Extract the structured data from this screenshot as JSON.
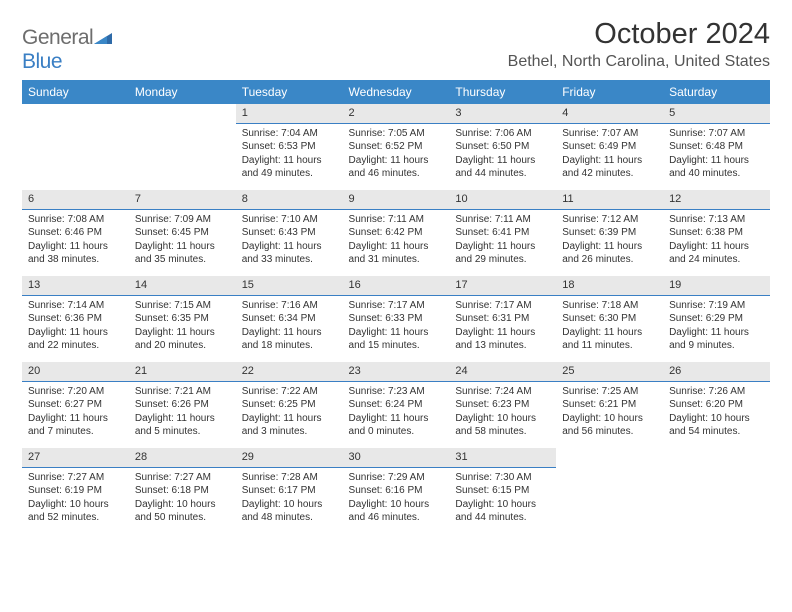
{
  "brand": {
    "part1": "General",
    "part2": "Blue"
  },
  "title": "October 2024",
  "location": "Bethel, North Carolina, United States",
  "colors": {
    "header_bg": "#3a87c7",
    "header_text": "#ffffff",
    "daynum_bg": "#e8e8e8",
    "daynum_border": "#3a7fc4",
    "body_text": "#333333",
    "logo_gray": "#6d6d6d",
    "logo_blue": "#3a7fc4"
  },
  "weekdays": [
    "Sunday",
    "Monday",
    "Tuesday",
    "Wednesday",
    "Thursday",
    "Friday",
    "Saturday"
  ],
  "weeks": [
    [
      {
        "blank": true
      },
      {
        "blank": true
      },
      {
        "day": "1",
        "sunrise": "Sunrise: 7:04 AM",
        "sunset": "Sunset: 6:53 PM",
        "day1": "Daylight: 11 hours",
        "day2": "and 49 minutes."
      },
      {
        "day": "2",
        "sunrise": "Sunrise: 7:05 AM",
        "sunset": "Sunset: 6:52 PM",
        "day1": "Daylight: 11 hours",
        "day2": "and 46 minutes."
      },
      {
        "day": "3",
        "sunrise": "Sunrise: 7:06 AM",
        "sunset": "Sunset: 6:50 PM",
        "day1": "Daylight: 11 hours",
        "day2": "and 44 minutes."
      },
      {
        "day": "4",
        "sunrise": "Sunrise: 7:07 AM",
        "sunset": "Sunset: 6:49 PM",
        "day1": "Daylight: 11 hours",
        "day2": "and 42 minutes."
      },
      {
        "day": "5",
        "sunrise": "Sunrise: 7:07 AM",
        "sunset": "Sunset: 6:48 PM",
        "day1": "Daylight: 11 hours",
        "day2": "and 40 minutes."
      }
    ],
    [
      {
        "day": "6",
        "sunrise": "Sunrise: 7:08 AM",
        "sunset": "Sunset: 6:46 PM",
        "day1": "Daylight: 11 hours",
        "day2": "and 38 minutes."
      },
      {
        "day": "7",
        "sunrise": "Sunrise: 7:09 AM",
        "sunset": "Sunset: 6:45 PM",
        "day1": "Daylight: 11 hours",
        "day2": "and 35 minutes."
      },
      {
        "day": "8",
        "sunrise": "Sunrise: 7:10 AM",
        "sunset": "Sunset: 6:43 PM",
        "day1": "Daylight: 11 hours",
        "day2": "and 33 minutes."
      },
      {
        "day": "9",
        "sunrise": "Sunrise: 7:11 AM",
        "sunset": "Sunset: 6:42 PM",
        "day1": "Daylight: 11 hours",
        "day2": "and 31 minutes."
      },
      {
        "day": "10",
        "sunrise": "Sunrise: 7:11 AM",
        "sunset": "Sunset: 6:41 PM",
        "day1": "Daylight: 11 hours",
        "day2": "and 29 minutes."
      },
      {
        "day": "11",
        "sunrise": "Sunrise: 7:12 AM",
        "sunset": "Sunset: 6:39 PM",
        "day1": "Daylight: 11 hours",
        "day2": "and 26 minutes."
      },
      {
        "day": "12",
        "sunrise": "Sunrise: 7:13 AM",
        "sunset": "Sunset: 6:38 PM",
        "day1": "Daylight: 11 hours",
        "day2": "and 24 minutes."
      }
    ],
    [
      {
        "day": "13",
        "sunrise": "Sunrise: 7:14 AM",
        "sunset": "Sunset: 6:36 PM",
        "day1": "Daylight: 11 hours",
        "day2": "and 22 minutes."
      },
      {
        "day": "14",
        "sunrise": "Sunrise: 7:15 AM",
        "sunset": "Sunset: 6:35 PM",
        "day1": "Daylight: 11 hours",
        "day2": "and 20 minutes."
      },
      {
        "day": "15",
        "sunrise": "Sunrise: 7:16 AM",
        "sunset": "Sunset: 6:34 PM",
        "day1": "Daylight: 11 hours",
        "day2": "and 18 minutes."
      },
      {
        "day": "16",
        "sunrise": "Sunrise: 7:17 AM",
        "sunset": "Sunset: 6:33 PM",
        "day1": "Daylight: 11 hours",
        "day2": "and 15 minutes."
      },
      {
        "day": "17",
        "sunrise": "Sunrise: 7:17 AM",
        "sunset": "Sunset: 6:31 PM",
        "day1": "Daylight: 11 hours",
        "day2": "and 13 minutes."
      },
      {
        "day": "18",
        "sunrise": "Sunrise: 7:18 AM",
        "sunset": "Sunset: 6:30 PM",
        "day1": "Daylight: 11 hours",
        "day2": "and 11 minutes."
      },
      {
        "day": "19",
        "sunrise": "Sunrise: 7:19 AM",
        "sunset": "Sunset: 6:29 PM",
        "day1": "Daylight: 11 hours",
        "day2": "and 9 minutes."
      }
    ],
    [
      {
        "day": "20",
        "sunrise": "Sunrise: 7:20 AM",
        "sunset": "Sunset: 6:27 PM",
        "day1": "Daylight: 11 hours",
        "day2": "and 7 minutes."
      },
      {
        "day": "21",
        "sunrise": "Sunrise: 7:21 AM",
        "sunset": "Sunset: 6:26 PM",
        "day1": "Daylight: 11 hours",
        "day2": "and 5 minutes."
      },
      {
        "day": "22",
        "sunrise": "Sunrise: 7:22 AM",
        "sunset": "Sunset: 6:25 PM",
        "day1": "Daylight: 11 hours",
        "day2": "and 3 minutes."
      },
      {
        "day": "23",
        "sunrise": "Sunrise: 7:23 AM",
        "sunset": "Sunset: 6:24 PM",
        "day1": "Daylight: 11 hours",
        "day2": "and 0 minutes."
      },
      {
        "day": "24",
        "sunrise": "Sunrise: 7:24 AM",
        "sunset": "Sunset: 6:23 PM",
        "day1": "Daylight: 10 hours",
        "day2": "and 58 minutes."
      },
      {
        "day": "25",
        "sunrise": "Sunrise: 7:25 AM",
        "sunset": "Sunset: 6:21 PM",
        "day1": "Daylight: 10 hours",
        "day2": "and 56 minutes."
      },
      {
        "day": "26",
        "sunrise": "Sunrise: 7:26 AM",
        "sunset": "Sunset: 6:20 PM",
        "day1": "Daylight: 10 hours",
        "day2": "and 54 minutes."
      }
    ],
    [
      {
        "day": "27",
        "sunrise": "Sunrise: 7:27 AM",
        "sunset": "Sunset: 6:19 PM",
        "day1": "Daylight: 10 hours",
        "day2": "and 52 minutes."
      },
      {
        "day": "28",
        "sunrise": "Sunrise: 7:27 AM",
        "sunset": "Sunset: 6:18 PM",
        "day1": "Daylight: 10 hours",
        "day2": "and 50 minutes."
      },
      {
        "day": "29",
        "sunrise": "Sunrise: 7:28 AM",
        "sunset": "Sunset: 6:17 PM",
        "day1": "Daylight: 10 hours",
        "day2": "and 48 minutes."
      },
      {
        "day": "30",
        "sunrise": "Sunrise: 7:29 AM",
        "sunset": "Sunset: 6:16 PM",
        "day1": "Daylight: 10 hours",
        "day2": "and 46 minutes."
      },
      {
        "day": "31",
        "sunrise": "Sunrise: 7:30 AM",
        "sunset": "Sunset: 6:15 PM",
        "day1": "Daylight: 10 hours",
        "day2": "and 44 minutes."
      },
      {
        "blank": true
      },
      {
        "blank": true
      }
    ]
  ]
}
